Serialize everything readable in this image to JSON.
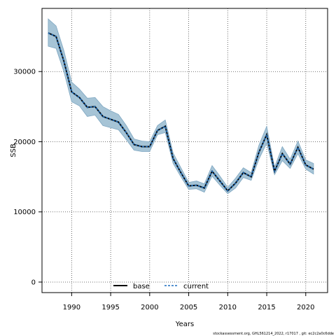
{
  "chart_data": {
    "type": "line",
    "xlabel": "Years",
    "ylabel": "SSB",
    "xlim": [
      1986.2,
      2022.8
    ],
    "ylim": [
      -1500,
      39000
    ],
    "x_ticks": [
      1990,
      1995,
      2000,
      2005,
      2010,
      2015,
      2020
    ],
    "y_ticks": [
      0,
      10000,
      20000,
      30000
    ],
    "grid": true,
    "legend_position": "bottom-center",
    "colors": {
      "band": "#a6c4d6",
      "band_edge": "#7fa7c2",
      "base": "#000000",
      "current": "#1f6fbf"
    },
    "x": [
      1987,
      1988,
      1989,
      1990,
      1991,
      1992,
      1993,
      1994,
      1995,
      1996,
      1997,
      1998,
      1999,
      2000,
      2001,
      2002,
      2003,
      2004,
      2005,
      2006,
      2007,
      2008,
      2009,
      2010,
      2011,
      2012,
      2013,
      2014,
      2015,
      2016,
      2017,
      2018,
      2019,
      2020,
      2021
    ],
    "band_upper": [
      37500,
      36500,
      33000,
      28500,
      27500,
      26200,
      26300,
      25000,
      24400,
      23900,
      22300,
      20400,
      20100,
      20000,
      22300,
      23100,
      18400,
      16300,
      14200,
      14400,
      14000,
      16600,
      15100,
      13500,
      14800,
      16300,
      15600,
      19500,
      22200,
      16400,
      19300,
      17500,
      20100,
      17400,
      16900
    ],
    "band_lower": [
      33600,
      33300,
      30000,
      25700,
      25100,
      23600,
      23800,
      22300,
      22000,
      21700,
      20300,
      18800,
      18600,
      18600,
      21000,
      21300,
      16900,
      15000,
      13200,
      13300,
      12800,
      15100,
      13800,
      12600,
      13400,
      14900,
      14500,
      17500,
      19800,
      15300,
      17300,
      16200,
      18300,
      16100,
      15400
    ],
    "series": [
      {
        "name": "base",
        "values": [
          35500,
          35000,
          31500,
          27100,
          26300,
          24900,
          25000,
          23600,
          23200,
          22800,
          21300,
          19600,
          19300,
          19300,
          21600,
          22200,
          17600,
          15600,
          13700,
          13800,
          13400,
          15800,
          14400,
          13000,
          14100,
          15600,
          15000,
          18500,
          21000,
          15800,
          18300,
          16800,
          19200,
          16700,
          16100
        ]
      },
      {
        "name": "current",
        "values": [
          35500,
          35000,
          31500,
          27100,
          26300,
          24900,
          25000,
          23600,
          23200,
          22800,
          21300,
          19600,
          19300,
          19300,
          21600,
          22200,
          17600,
          15600,
          13700,
          13800,
          13400,
          15800,
          14400,
          13000,
          14100,
          15600,
          15000,
          18500,
          21000,
          15800,
          18300,
          16800,
          19200,
          16700,
          16100
        ]
      }
    ],
    "y_tick_labels": [
      "0",
      "10000",
      "20000",
      "30000"
    ],
    "x_tick_labels": [
      "1990",
      "1995",
      "2000",
      "2005",
      "2010",
      "2015",
      "2020"
    ]
  },
  "legend": {
    "base_label": "base",
    "current_label": "current"
  },
  "footer": "stockassessment.org, GHL561214_2022, r17017 , git: ec2c2a0c6dde"
}
